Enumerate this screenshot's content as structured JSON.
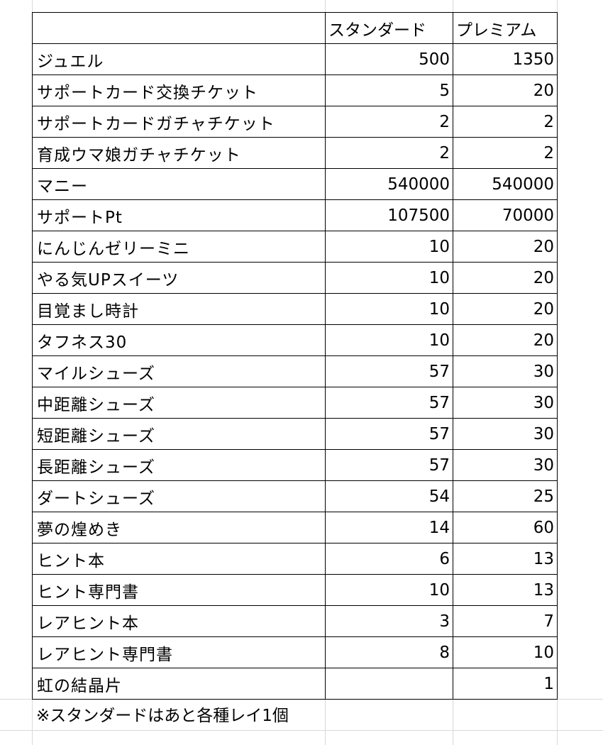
{
  "sheet": {
    "headers": [
      "",
      "スタンダード",
      "プレミアム"
    ],
    "rows": [
      {
        "item": "ジュエル",
        "standard": "500",
        "premium": "1350"
      },
      {
        "item": "サポートカード交換チケット",
        "standard": "5",
        "premium": "20"
      },
      {
        "item": "サポートカードガチャチケット",
        "standard": "2",
        "premium": "2"
      },
      {
        "item": "育成ウマ娘ガチャチケット",
        "standard": "2",
        "premium": "2"
      },
      {
        "item": "マニー",
        "standard": "540000",
        "premium": "540000"
      },
      {
        "item": "サポートPt",
        "standard": "107500",
        "premium": "70000"
      },
      {
        "item": "にんじんゼリーミニ",
        "standard": "10",
        "premium": "20"
      },
      {
        "item": "やる気UPスイーツ",
        "standard": "10",
        "premium": "20"
      },
      {
        "item": "目覚まし時計",
        "standard": "10",
        "premium": "20"
      },
      {
        "item": "タフネス30",
        "standard": "10",
        "premium": "20"
      },
      {
        "item": "マイルシューズ",
        "standard": "57",
        "premium": "30"
      },
      {
        "item": "中距離シューズ",
        "standard": "57",
        "premium": "30"
      },
      {
        "item": "短距離シューズ",
        "standard": "57",
        "premium": "30"
      },
      {
        "item": "長距離シューズ",
        "standard": "57",
        "premium": "30"
      },
      {
        "item": "ダートシューズ",
        "standard": "54",
        "premium": "25"
      },
      {
        "item": "夢の煌めき",
        "standard": "14",
        "premium": "60"
      },
      {
        "item": "ヒント本",
        "standard": "6",
        "premium": "13"
      },
      {
        "item": "ヒント専門書",
        "standard": "10",
        "premium": "13"
      },
      {
        "item": "レアヒント本",
        "standard": "3",
        "premium": "7"
      },
      {
        "item": "レアヒント専門書",
        "standard": "8",
        "premium": "10"
      },
      {
        "item": "虹の結晶片",
        "standard": "",
        "premium": "1"
      }
    ],
    "note": "※スタンダードはあと各種レイ1個"
  }
}
